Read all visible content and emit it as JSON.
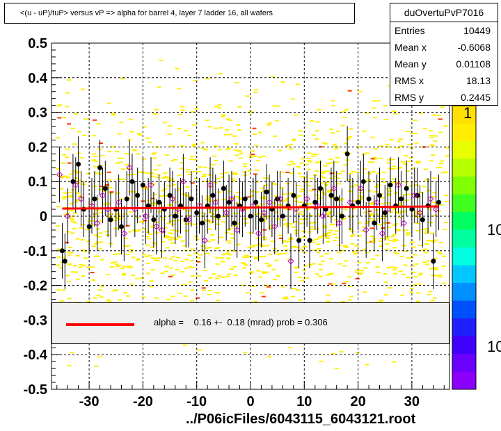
{
  "title": "<(u - uP)/tuP> versus   vP => alpha for barrel 4, layer 7 ladder 16, all wafers",
  "stats": {
    "name": "duOvertuPvP7016",
    "rows": [
      {
        "label": "Entries",
        "value": "10449"
      },
      {
        "label": "Mean x",
        "value": "-0.6068"
      },
      {
        "label": "Mean y",
        "value": "0.01108"
      },
      {
        "label": "RMS x",
        "value": "18.13"
      },
      {
        "label": "RMS y",
        "value": "0.2445"
      }
    ]
  },
  "fit": {
    "text": "alpha =    0.16 +-  0.18 (mrad) prob = 0.306",
    "color": "#ff0000"
  },
  "footer": "../P06icFiles/6043115_6043121.root",
  "colorbar": {
    "labels": [
      "1",
      "10",
      "10"
    ]
  },
  "chart_data": {
    "type": "scatter",
    "xlim": [
      -37,
      37
    ],
    "ylim": [
      -0.5,
      0.5
    ],
    "x_ticks": [
      -30,
      -20,
      -10,
      0,
      10,
      20,
      30
    ],
    "y_ticks": [
      0.5,
      0.4,
      0.3,
      0.2,
      0.1,
      0,
      -0.1,
      -0.2,
      -0.3,
      -0.4,
      -0.5
    ],
    "grid": true,
    "series": [
      {
        "marker": "filled-circle",
        "color": "#000000",
        "x": [
          -35,
          -34.5,
          -33,
          -32,
          -31,
          -30,
          -29,
          -28,
          -27,
          -26,
          -25,
          -24,
          -23,
          -22,
          -21,
          -20,
          -19,
          -18,
          -17,
          -16,
          -15,
          -14,
          -13,
          -12,
          -11,
          -10,
          -9,
          -8,
          -7,
          -6,
          -5,
          -4,
          -3,
          -2,
          -1,
          0,
          1,
          2,
          3,
          4,
          5,
          6,
          7,
          8,
          9,
          10,
          11,
          12,
          13,
          14,
          15,
          16,
          17,
          18,
          19,
          20,
          21,
          22,
          23,
          24,
          25,
          26,
          27,
          28,
          29,
          30,
          31,
          32,
          33,
          34,
          35
        ],
        "y": [
          -0.1,
          -0.13,
          0.1,
          0.15,
          0.02,
          -0.03,
          0.05,
          0.14,
          0.08,
          -0.01,
          0.02,
          -0.03,
          0.05,
          0.1,
          0.06,
          0.09,
          0.03,
          -0.01,
          0.04,
          0.02,
          0.06,
          0.0,
          0.03,
          -0.01,
          0.05,
          0.01,
          -0.02,
          0.03,
          0.06,
          0.0,
          0.08,
          0.04,
          -0.02,
          0.03,
          0.05,
          0.0,
          0.04,
          -0.01,
          0.07,
          0.02,
          0.05,
          0.0,
          0.03,
          0.06,
          -0.07,
          0.03,
          -0.07,
          0.04,
          0.08,
          0.02,
          0.06,
          0.05,
          0.0,
          0.18,
          0.03,
          0.04,
          0.1,
          0.05,
          -0.02,
          0.06,
          0.01,
          0.09,
          0.03,
          0.05,
          0.08,
          0.02,
          0.06,
          -0.01,
          0.03,
          -0.13,
          0.04
        ]
      },
      {
        "marker": "open-diamond",
        "color": "#cc00cc",
        "x": [
          -35.5,
          -34,
          -32.5,
          -31.5,
          -29.5,
          -28.5,
          -27.5,
          -26.5,
          -24.5,
          -23.5,
          -22.5,
          -21.5,
          -19.5,
          -18.5,
          -17.5,
          -16.5,
          -14.5,
          -13.5,
          -12.5,
          -11.5,
          -9.5,
          -8.5,
          -7.5,
          -6.5,
          -4.5,
          -3.5,
          -2.5,
          -1.5,
          0.5,
          1.5,
          2.5,
          3.5,
          4.5,
          5.5,
          7.5,
          8.5,
          10.5,
          12.5,
          13.5,
          15.5,
          16.5,
          18.5,
          20.5,
          21.5,
          23.5,
          24.5,
          25.5,
          27.5,
          28.5,
          30.5,
          31.5,
          33.5,
          34.5
        ],
        "y": [
          0.12,
          0.0,
          0.09,
          0.05,
          0.03,
          -0.02,
          0.06,
          0.02,
          0.04,
          -0.05,
          0.14,
          0.02,
          0.0,
          0.09,
          -0.03,
          -0.04,
          0.05,
          0.02,
          0.1,
          -0.01,
          0.03,
          -0.07,
          0.09,
          0.04,
          0.01,
          0.05,
          -0.04,
          0.02,
          0.03,
          -0.05,
          0.01,
          0.04,
          -0.03,
          0.05,
          -0.13,
          0.02,
          0.05,
          0.03,
          0.0,
          0.08,
          -0.02,
          0.04,
          0.08,
          -0.04,
          0.04,
          -0.05,
          0.02,
          0.09,
          -0.02,
          0.06,
          0.01,
          0.05,
          0.02
        ]
      }
    ],
    "fit_line": {
      "x": [
        -35,
        35
      ],
      "y": [
        0.022,
        0.028
      ],
      "color": "#ff0000"
    }
  }
}
